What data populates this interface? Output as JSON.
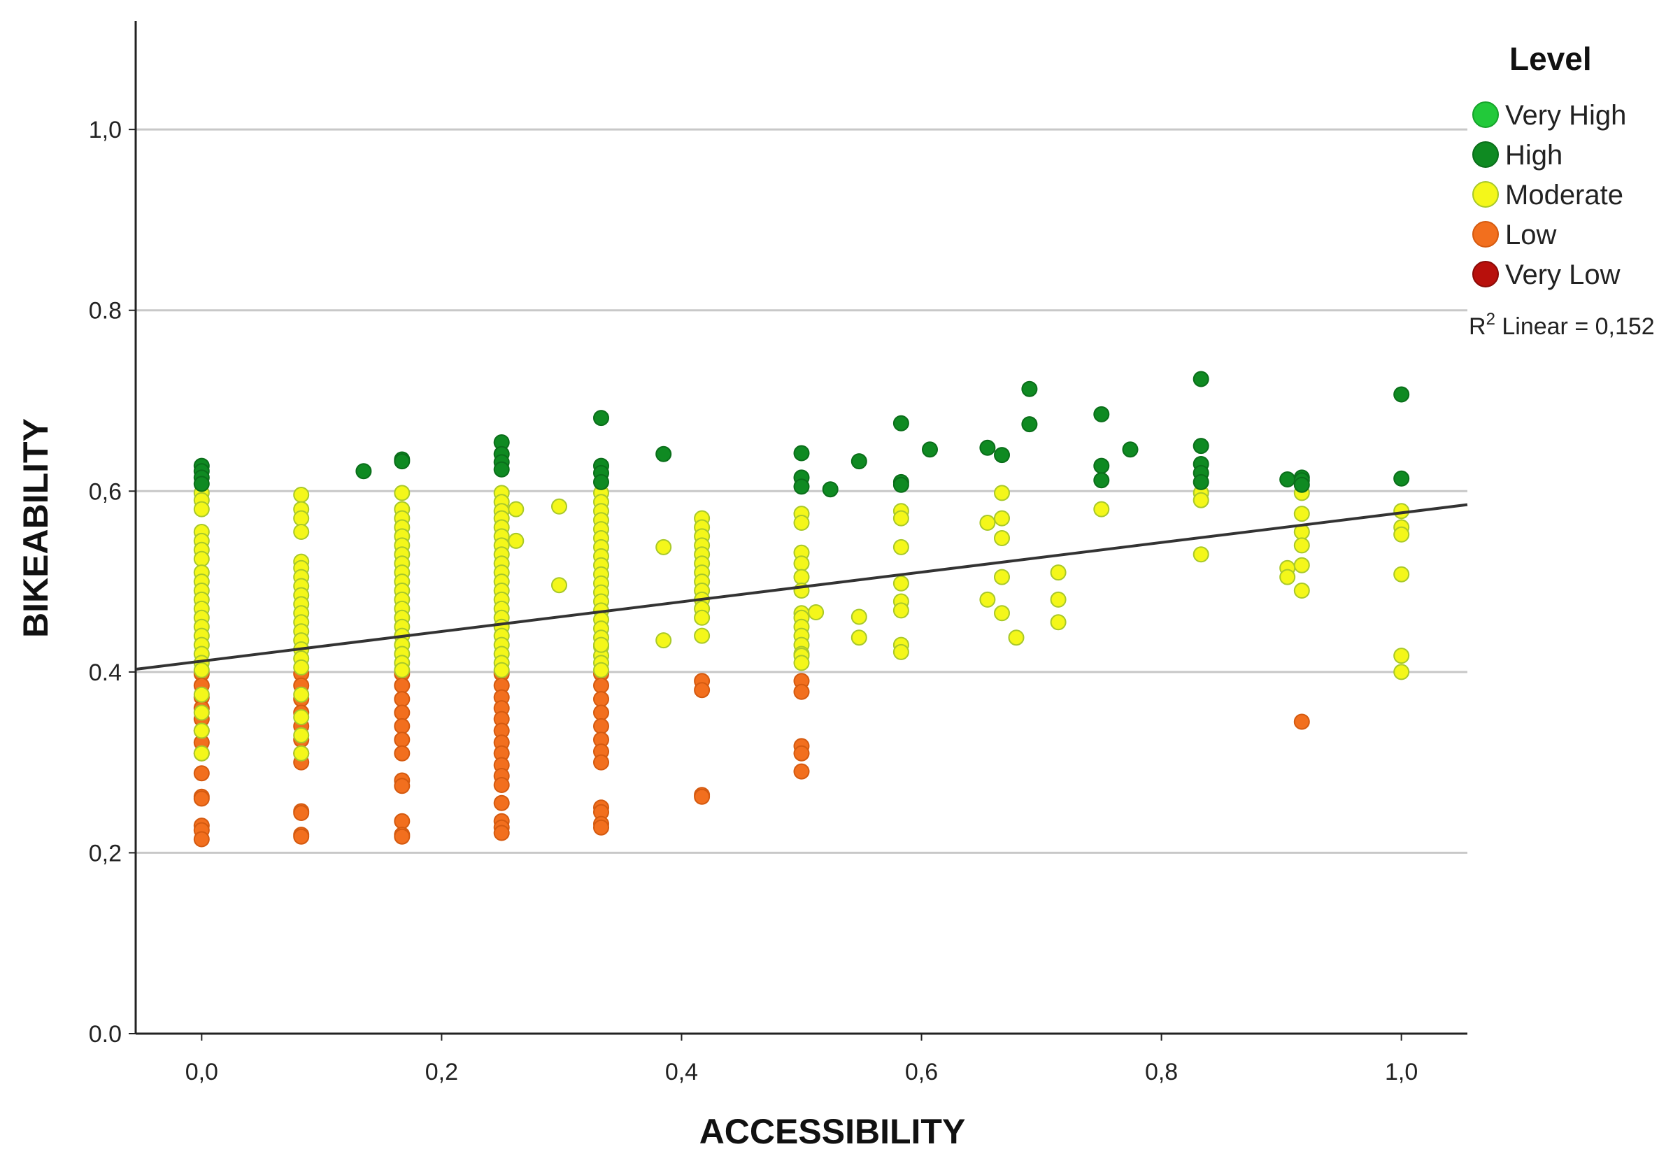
{
  "chart_data": {
    "type": "scatter",
    "title": "",
    "xlabel": "ACCESSIBILITY",
    "ylabel": "BIKEABILITY",
    "xlim": [
      -0.055,
      1.055
    ],
    "ylim": [
      0.0,
      1.12
    ],
    "grid": "horizontal",
    "xticks": [
      0.0,
      0.2,
      0.4,
      0.6,
      0.8,
      1.0
    ],
    "xtick_labels": [
      "0,0",
      "0,2",
      "0,4",
      "0,6",
      "0,8",
      "1,0"
    ],
    "yticks": [
      0.0,
      0.2,
      0.4,
      0.6,
      0.8,
      1.0
    ],
    "ytick_labels": [
      "0.0",
      "0,2",
      "0.4",
      "0,6",
      "0.8",
      "1,0"
    ],
    "legend": {
      "title": "Level",
      "position": "top-right",
      "entries": [
        {
          "label": "Very High",
          "color": "#22c93a",
          "stroke": "#15a32a"
        },
        {
          "label": "High",
          "color": "#0f8a22",
          "stroke": "#0a6e1a"
        },
        {
          "label": "Moderate",
          "color": "#f4f71a",
          "stroke": "#a8c82a"
        },
        {
          "label": "Low",
          "color": "#f26f1e",
          "stroke": "#d45a10"
        },
        {
          "label": "Very Low",
          "color": "#b8100c",
          "stroke": "#8a0a06"
        }
      ]
    },
    "fit_line": {
      "label_prefix": "R",
      "label_sup": "2",
      "label_suffix": " Linear = 0,152",
      "intercept": 0.412,
      "slope": 0.164,
      "x_range": [
        -0.055,
        1.055
      ],
      "color": "#333333"
    },
    "series": [
      {
        "name": "High",
        "x": [
          0.0,
          0.0,
          0.0,
          0.0,
          0.135,
          0.167,
          0.167,
          0.25,
          0.25,
          0.25,
          0.25,
          0.333,
          0.333,
          0.333,
          0.333,
          0.385,
          0.5,
          0.5,
          0.5,
          0.524,
          0.548,
          0.583,
          0.583,
          0.583,
          0.607,
          0.655,
          0.667,
          0.69,
          0.69,
          0.75,
          0.75,
          0.75,
          0.774,
          0.833,
          0.833,
          0.833,
          0.833,
          0.833,
          0.905,
          0.917,
          0.917,
          0.917,
          1.0,
          1.0
        ],
        "y": [
          0.628,
          0.622,
          0.615,
          0.608,
          0.622,
          0.635,
          0.633,
          0.654,
          0.641,
          0.632,
          0.624,
          0.681,
          0.628,
          0.62,
          0.61,
          0.641,
          0.642,
          0.615,
          0.605,
          0.602,
          0.633,
          0.675,
          0.61,
          0.607,
          0.646,
          0.648,
          0.64,
          0.713,
          0.674,
          0.685,
          0.628,
          0.612,
          0.646,
          0.724,
          0.65,
          0.63,
          0.62,
          0.61,
          0.613,
          0.615,
          0.612,
          0.607,
          0.707,
          0.614
        ]
      },
      {
        "name": "Moderate",
        "x": [
          0.0,
          0.0,
          0.0,
          0.0,
          0.0,
          0.0,
          0.0,
          0.0,
          0.0,
          0.0,
          0.0,
          0.0,
          0.0,
          0.0,
          0.0,
          0.0,
          0.0,
          0.0,
          0.0,
          0.0,
          0.0,
          0.0,
          0.0,
          0.083,
          0.083,
          0.083,
          0.083,
          0.083,
          0.083,
          0.083,
          0.083,
          0.083,
          0.083,
          0.083,
          0.083,
          0.083,
          0.083,
          0.083,
          0.083,
          0.083,
          0.083,
          0.083,
          0.083,
          0.083,
          0.167,
          0.167,
          0.167,
          0.167,
          0.167,
          0.167,
          0.167,
          0.167,
          0.167,
          0.167,
          0.167,
          0.167,
          0.167,
          0.167,
          0.167,
          0.167,
          0.167,
          0.167,
          0.167,
          0.167,
          0.25,
          0.25,
          0.25,
          0.25,
          0.25,
          0.25,
          0.25,
          0.25,
          0.25,
          0.25,
          0.25,
          0.25,
          0.25,
          0.25,
          0.25,
          0.25,
          0.25,
          0.25,
          0.25,
          0.25,
          0.25,
          0.262,
          0.262,
          0.298,
          0.298,
          0.333,
          0.333,
          0.333,
          0.333,
          0.333,
          0.333,
          0.333,
          0.333,
          0.333,
          0.333,
          0.333,
          0.333,
          0.333,
          0.333,
          0.333,
          0.333,
          0.333,
          0.333,
          0.333,
          0.333,
          0.333,
          0.333,
          0.385,
          0.385,
          0.417,
          0.417,
          0.417,
          0.417,
          0.417,
          0.417,
          0.417,
          0.417,
          0.417,
          0.417,
          0.417,
          0.417,
          0.417,
          0.5,
          0.5,
          0.5,
          0.5,
          0.5,
          0.5,
          0.5,
          0.5,
          0.5,
          0.5,
          0.5,
          0.5,
          0.5,
          0.5,
          0.512,
          0.548,
          0.548,
          0.583,
          0.583,
          0.583,
          0.583,
          0.583,
          0.583,
          0.583,
          0.583,
          0.655,
          0.655,
          0.667,
          0.667,
          0.667,
          0.667,
          0.667,
          0.679,
          0.714,
          0.714,
          0.714,
          0.75,
          0.833,
          0.833,
          0.833,
          0.905,
          0.905,
          0.917,
          0.917,
          0.917,
          0.917,
          0.917,
          0.917,
          1.0,
          1.0,
          1.0,
          1.0,
          1.0,
          1.0
        ],
        "y": [
          0.598,
          0.59,
          0.58,
          0.555,
          0.545,
          0.535,
          0.525,
          0.51,
          0.5,
          0.49,
          0.48,
          0.47,
          0.46,
          0.45,
          0.44,
          0.43,
          0.42,
          0.41,
          0.402,
          0.375,
          0.355,
          0.335,
          0.31,
          0.596,
          0.58,
          0.57,
          0.555,
          0.522,
          0.515,
          0.505,
          0.495,
          0.485,
          0.475,
          0.465,
          0.455,
          0.445,
          0.435,
          0.425,
          0.415,
          0.405,
          0.375,
          0.35,
          0.33,
          0.31,
          0.598,
          0.58,
          0.57,
          0.56,
          0.55,
          0.54,
          0.53,
          0.52,
          0.51,
          0.5,
          0.49,
          0.48,
          0.47,
          0.46,
          0.45,
          0.44,
          0.43,
          0.42,
          0.41,
          0.402,
          0.598,
          0.588,
          0.578,
          0.57,
          0.56,
          0.55,
          0.54,
          0.53,
          0.52,
          0.51,
          0.5,
          0.49,
          0.48,
          0.47,
          0.46,
          0.45,
          0.44,
          0.43,
          0.42,
          0.41,
          0.402,
          0.58,
          0.545,
          0.583,
          0.496,
          0.598,
          0.588,
          0.578,
          0.568,
          0.558,
          0.548,
          0.538,
          0.528,
          0.518,
          0.508,
          0.498,
          0.488,
          0.478,
          0.468,
          0.458,
          0.448,
          0.438,
          0.428,
          0.418,
          0.41,
          0.402,
          0.43,
          0.538,
          0.435,
          0.57,
          0.56,
          0.55,
          0.54,
          0.53,
          0.52,
          0.51,
          0.5,
          0.49,
          0.48,
          0.47,
          0.46,
          0.44,
          0.575,
          0.565,
          0.532,
          0.52,
          0.505,
          0.49,
          0.465,
          0.46,
          0.45,
          0.44,
          0.43,
          0.42,
          0.418,
          0.41,
          0.466,
          0.461,
          0.438,
          0.578,
          0.57,
          0.538,
          0.498,
          0.478,
          0.468,
          0.43,
          0.422,
          0.565,
          0.48,
          0.598,
          0.57,
          0.548,
          0.505,
          0.465,
          0.438,
          0.51,
          0.48,
          0.455,
          0.58,
          0.598,
          0.59,
          0.53,
          0.515,
          0.505,
          0.598,
          0.575,
          0.555,
          0.54,
          0.518,
          0.49,
          0.578,
          0.56,
          0.552,
          0.508,
          0.418,
          0.4
        ]
      },
      {
        "name": "Low",
        "x": [
          0.0,
          0.0,
          0.0,
          0.0,
          0.0,
          0.0,
          0.0,
          0.0,
          0.0,
          0.0,
          0.0,
          0.0,
          0.0,
          0.0,
          0.083,
          0.083,
          0.083,
          0.083,
          0.083,
          0.083,
          0.083,
          0.083,
          0.083,
          0.083,
          0.083,
          0.083,
          0.167,
          0.167,
          0.167,
          0.167,
          0.167,
          0.167,
          0.167,
          0.167,
          0.167,
          0.167,
          0.167,
          0.167,
          0.25,
          0.25,
          0.25,
          0.25,
          0.25,
          0.25,
          0.25,
          0.25,
          0.25,
          0.25,
          0.25,
          0.25,
          0.25,
          0.25,
          0.25,
          0.333,
          0.333,
          0.333,
          0.333,
          0.333,
          0.333,
          0.333,
          0.333,
          0.333,
          0.333,
          0.333,
          0.333,
          0.417,
          0.417,
          0.417,
          0.417,
          0.5,
          0.5,
          0.5,
          0.5,
          0.5,
          0.917
        ],
        "y": [
          0.398,
          0.385,
          0.372,
          0.36,
          0.348,
          0.335,
          0.322,
          0.31,
          0.288,
          0.262,
          0.26,
          0.23,
          0.225,
          0.215,
          0.398,
          0.385,
          0.37,
          0.355,
          0.34,
          0.325,
          0.31,
          0.3,
          0.246,
          0.244,
          0.22,
          0.218,
          0.398,
          0.385,
          0.37,
          0.355,
          0.34,
          0.325,
          0.31,
          0.28,
          0.274,
          0.235,
          0.22,
          0.218,
          0.398,
          0.385,
          0.372,
          0.36,
          0.348,
          0.335,
          0.322,
          0.31,
          0.297,
          0.285,
          0.275,
          0.255,
          0.235,
          0.228,
          0.222,
          0.398,
          0.385,
          0.37,
          0.355,
          0.34,
          0.325,
          0.312,
          0.3,
          0.25,
          0.245,
          0.232,
          0.228,
          0.39,
          0.38,
          0.264,
          0.262,
          0.39,
          0.378,
          0.318,
          0.31,
          0.29,
          0.345
        ]
      },
      {
        "name": "Very High",
        "x": [],
        "y": []
      },
      {
        "name": "Very Low",
        "x": [],
        "y": []
      }
    ]
  }
}
